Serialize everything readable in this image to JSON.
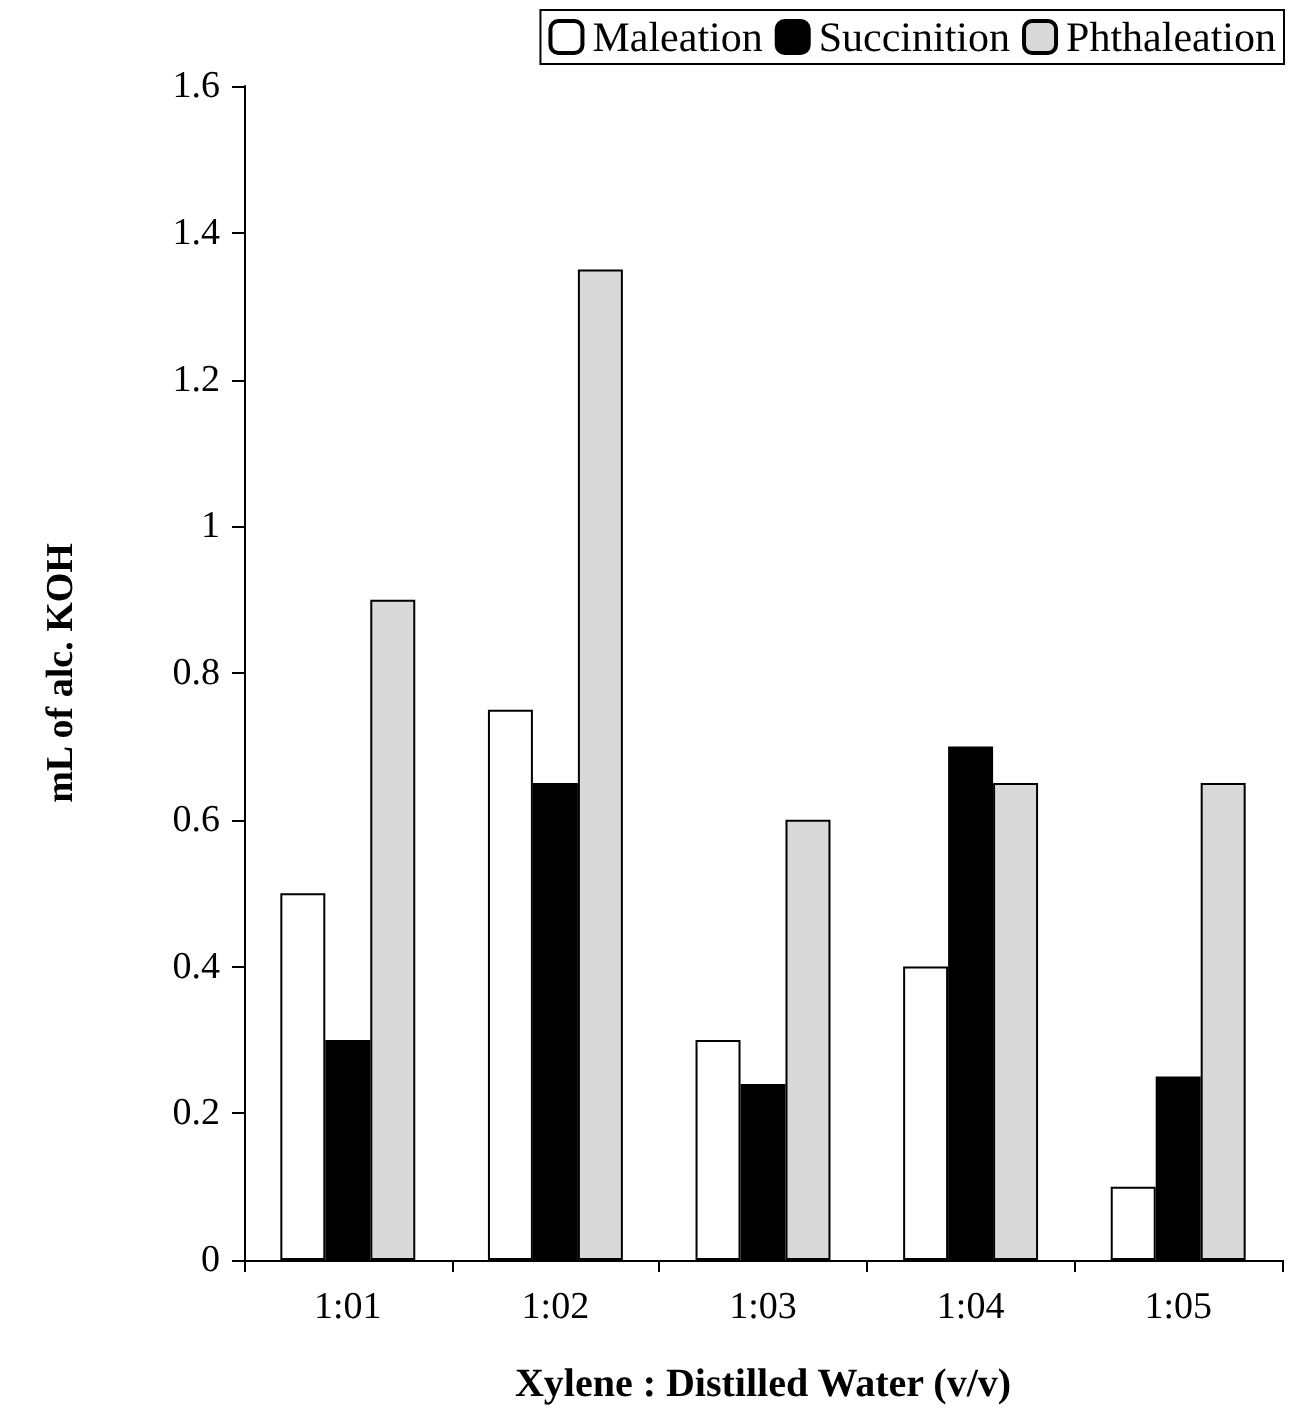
{
  "chart_data": {
    "type": "bar",
    "xlabel": "Xylene : Distilled Water (v/v)",
    "ylabel": "mL of alc. KOH",
    "categories": [
      "1:01",
      "1:02",
      "1:03",
      "1:04",
      "1:05"
    ],
    "series": [
      {
        "name": "Maleation",
        "color": "#ffffff",
        "values": [
          0.5,
          0.75,
          0.3,
          0.4,
          0.1
        ]
      },
      {
        "name": "Succinition",
        "color": "#000000",
        "values": [
          0.3,
          0.65,
          0.24,
          0.7,
          0.25
        ]
      },
      {
        "name": "Phthaleation",
        "color": "#d9d9d9",
        "values": [
          0.9,
          1.35,
          0.6,
          0.65,
          0.65
        ]
      }
    ],
    "ylim": [
      0,
      1.6
    ],
    "yticks": [
      0,
      0.2,
      0.4,
      0.6,
      0.8,
      1,
      1.2,
      1.4,
      1.6
    ],
    "grid": false,
    "legend": "top right"
  }
}
